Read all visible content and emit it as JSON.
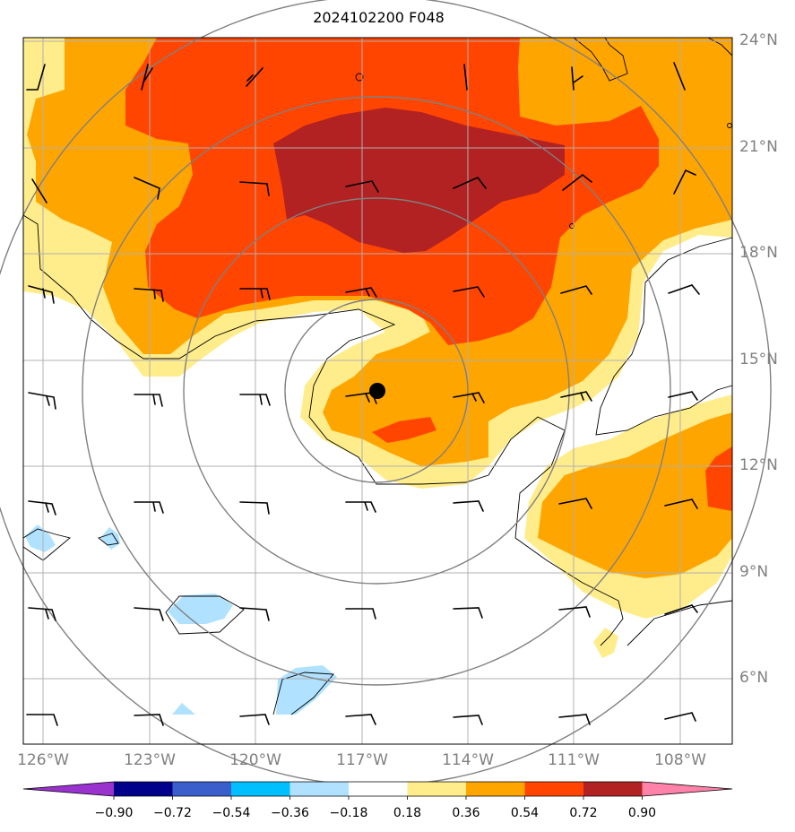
{
  "title": "2024102200 F048",
  "lat_ticks": [
    "24°N",
    "21°N",
    "18°N",
    "15°N",
    "12°N",
    "9°N",
    "6°N"
  ],
  "lon_ticks": [
    "126°W",
    "123°W",
    "120°W",
    "117°W",
    "114°W",
    "111°W",
    "108°W"
  ],
  "colorbar": {
    "ticks": [
      "−0.90",
      "−0.72",
      "−0.54",
      "−0.36",
      "−0.18",
      "0.18",
      "0.36",
      "0.54",
      "0.72",
      "0.90"
    ],
    "colors": [
      "#9a32cd",
      "#00008b",
      "#3a5fcd",
      "#00bfff",
      "#b0e2ff",
      "#ffffff",
      "#ffec8b",
      "#ffa500",
      "#ff4500",
      "#b22222",
      "#ff82ab"
    ]
  },
  "field_colors": {
    "pos_018": "#ffec8b",
    "pos_036": "#ffa500",
    "pos_054": "#ff4500",
    "pos_072": "#b22222",
    "neg_018": "#b0e2ff"
  },
  "storm_center": {
    "lat": 14.1,
    "lon": -116.6
  },
  "range_rings": "gray concentric circles around storm center",
  "grid": true
}
